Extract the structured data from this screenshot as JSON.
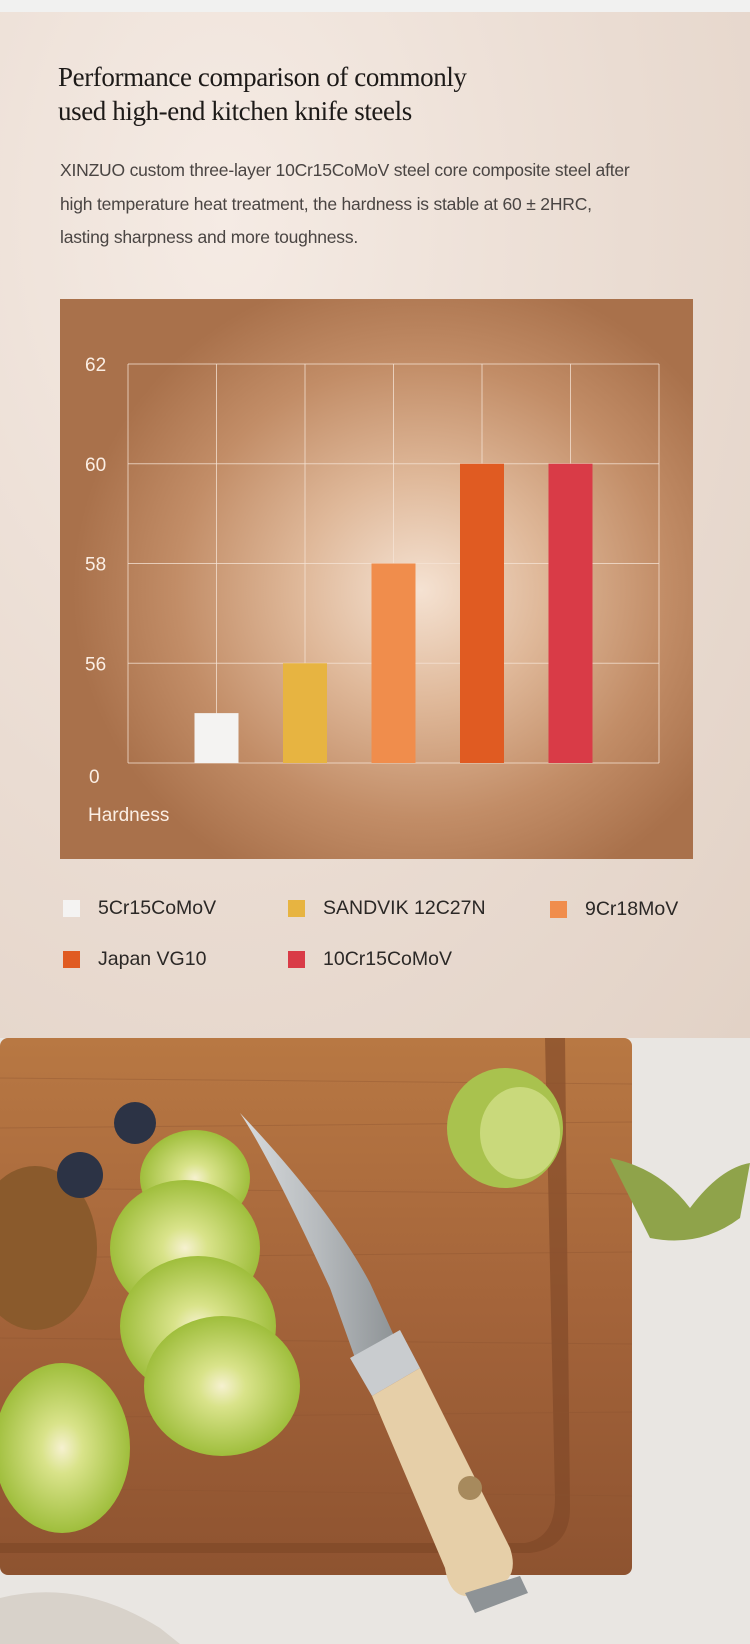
{
  "header": {
    "title_line1": "Performance comparison of commonly",
    "title_line2": "used high-end kitchen knife steels",
    "description_lines": [
      "XINZUO custom three-layer 10Cr15CoMoV steel core composite steel after",
      "high temperature heat treatment, the hardness is stable at 60 ± 2HRC,",
      "lasting sharpness and more toughness."
    ]
  },
  "chart_data": {
    "type": "bar",
    "title": "",
    "xlabel": "",
    "ylabel": "Hardness",
    "y_ticks": [
      "0",
      "56",
      "58",
      "60",
      "62"
    ],
    "ylim": [
      0,
      62
    ],
    "axis_break": "between 0 and 56",
    "grid": true,
    "legend_placement": "bottom",
    "categories": [
      "5Cr15CoMoV",
      "SANDVIK 12C27N",
      "9Cr18MoV",
      "Japan VG10",
      "10Cr15CoMoV"
    ],
    "values": [
      55,
      56,
      58,
      60,
      60
    ],
    "colors": [
      "#f4f3f2",
      "#e7b441",
      "#f08d4c",
      "#e05b22",
      "#d93b47"
    ]
  },
  "photo": {
    "description_logo_text": "XINZUO",
    "colors": {
      "board": "#a8683a",
      "kiwi": "#b9d25a",
      "handle": "#e6cfa8"
    }
  }
}
